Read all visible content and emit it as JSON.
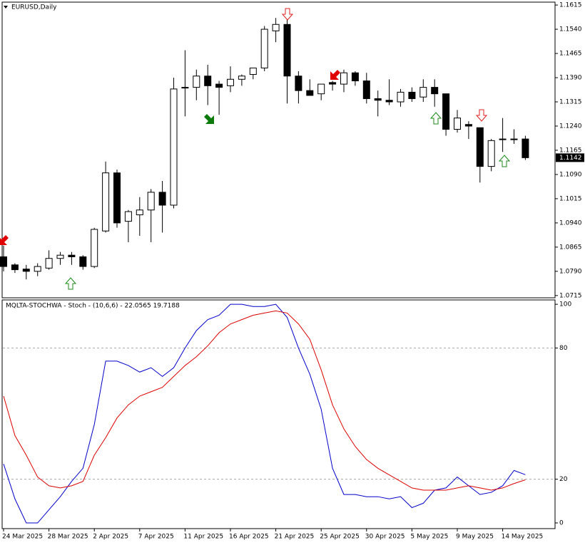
{
  "chart_data": [
    {
      "type": "candlestick",
      "title": "EURUSD,Daily",
      "open": [
        1.0835,
        1.081,
        1.0797,
        1.079,
        1.08,
        1.083,
        1.084,
        1.0835,
        1.0805,
        1.0915,
        1.1095,
        1.0945,
        1.0965,
        1.098,
        1.1035,
        1.0995,
        1.136,
        1.136,
        1.1395,
        1.137,
        1.1365,
        1.1385,
        1.14,
        1.142,
        1.1535,
        1.1555,
        1.1395,
        1.135,
        1.134,
        1.1375,
        1.137,
        1.1405,
        1.138,
        1.1325,
        1.132,
        1.1315,
        1.1345,
        1.133,
        1.136,
        1.134,
        1.123,
        1.1245,
        1.1235,
        1.1115,
        1.12,
        1.12,
        1.12
      ],
      "high": [
        1.087,
        1.0815,
        1.081,
        1.0815,
        1.0855,
        1.085,
        1.085,
        1.084,
        1.0925,
        1.113,
        1.1105,
        1.098,
        1.102,
        1.1045,
        1.107,
        1.139,
        1.1475,
        1.1415,
        1.143,
        1.138,
        1.1425,
        1.14,
        1.142,
        1.155,
        1.1575,
        1.157,
        1.141,
        1.1385,
        1.137,
        1.138,
        1.1415,
        1.141,
        1.1405,
        1.135,
        1.1385,
        1.1355,
        1.136,
        1.1385,
        1.1385,
        1.134,
        1.129,
        1.1255,
        1.1235,
        1.12,
        1.1265,
        1.123,
        1.121
      ],
      "low": [
        1.079,
        1.0785,
        1.0765,
        1.0775,
        1.0795,
        1.081,
        1.081,
        1.0795,
        1.08,
        1.091,
        1.0925,
        1.088,
        1.09,
        1.088,
        1.091,
        1.0985,
        1.127,
        1.132,
        1.1305,
        1.1275,
        1.1345,
        1.1365,
        1.1385,
        1.141,
        1.15,
        1.131,
        1.131,
        1.1335,
        1.132,
        1.135,
        1.1345,
        1.1365,
        1.131,
        1.127,
        1.1305,
        1.13,
        1.1315,
        1.1315,
        1.13,
        1.121,
        1.122,
        1.12,
        1.1065,
        1.11,
        1.116,
        1.1185,
        1.1135
      ],
      "close": [
        1.0805,
        1.0795,
        1.079,
        1.0805,
        1.083,
        1.084,
        1.0835,
        1.0805,
        1.092,
        1.1095,
        1.094,
        1.0975,
        1.098,
        1.1035,
        1.0995,
        1.1355,
        1.136,
        1.1395,
        1.1365,
        1.136,
        1.1385,
        1.1395,
        1.142,
        1.154,
        1.1555,
        1.1395,
        1.135,
        1.1335,
        1.137,
        1.137,
        1.1405,
        1.138,
        1.1325,
        1.132,
        1.1315,
        1.1345,
        1.1325,
        1.136,
        1.134,
        1.123,
        1.1265,
        1.124,
        1.1115,
        1.1195,
        1.12,
        1.12,
        1.1142
      ],
      "up_color": "#ffffff",
      "down_color": "#000000",
      "ylim": [
        1.0708,
        1.1624
      ],
      "yticks": [
        1.0715,
        {
          "value": 1.079,
          "label": "1.0790"
        },
        1.0865,
        {
          "value": 1.094,
          "label": "1.0940"
        },
        1.1015,
        {
          "value": 1.109,
          "label": "1.1090"
        },
        1.1165,
        {
          "value": 1.124,
          "label": "1.1240"
        },
        1.1315,
        {
          "value": 1.139,
          "label": "1.1390"
        },
        1.1465,
        {
          "value": 1.154,
          "label": "1.1540"
        },
        1.1615
      ]
    },
    {
      "type": "line",
      "title": "MQLTA-STOCHWA - Stoch - (10,6,6) - 22.0565 19.7188",
      "categories": [
        "24 Mar 2025",
        null,
        null,
        null,
        "28 Mar 2025",
        null,
        null,
        null,
        "2 Apr 2025",
        null,
        null,
        null,
        "7 Apr 2025",
        null,
        null,
        null,
        "11 Apr 2025",
        null,
        null,
        null,
        "16 Apr 2025",
        null,
        null,
        null,
        "21 Apr 2025",
        null,
        null,
        null,
        "25 Apr 2025",
        null,
        null,
        null,
        "30 Apr 2025",
        null,
        null,
        null,
        "5 May 2025",
        null,
        null,
        null,
        "9 May 2025",
        null,
        null,
        null,
        "14 May 2025",
        null,
        null
      ],
      "series": [
        {
          "color": "#0000cc",
          "values": [
            27,
            11,
            0,
            0,
            6,
            12,
            19,
            25,
            45,
            74,
            74,
            72,
            69,
            71,
            67,
            71,
            80,
            88,
            93,
            95,
            100,
            100,
            99,
            99,
            100,
            94,
            80,
            68,
            52,
            25,
            13,
            13,
            12,
            12,
            11,
            12,
            7,
            9,
            15,
            16,
            21,
            17,
            13,
            14,
            17,
            24,
            22.0565
          ]
        },
        {
          "color": "#dd0000",
          "values": [
            58,
            40,
            31,
            21,
            17,
            16,
            17,
            19,
            31,
            39,
            48,
            54,
            58,
            60,
            62,
            67,
            72,
            76,
            81,
            87,
            91,
            93,
            95,
            96,
            97,
            96,
            91,
            84,
            70,
            54,
            43,
            35,
            29,
            25,
            22,
            19,
            16,
            15,
            15,
            15,
            16,
            17,
            16,
            15,
            16,
            18,
            19.7188
          ]
        }
      ],
      "ylim": [
        -2.6,
        102
      ],
      "yticks": [
        0,
        20,
        80,
        100
      ],
      "levels": [
        20,
        80
      ]
    }
  ]
}
